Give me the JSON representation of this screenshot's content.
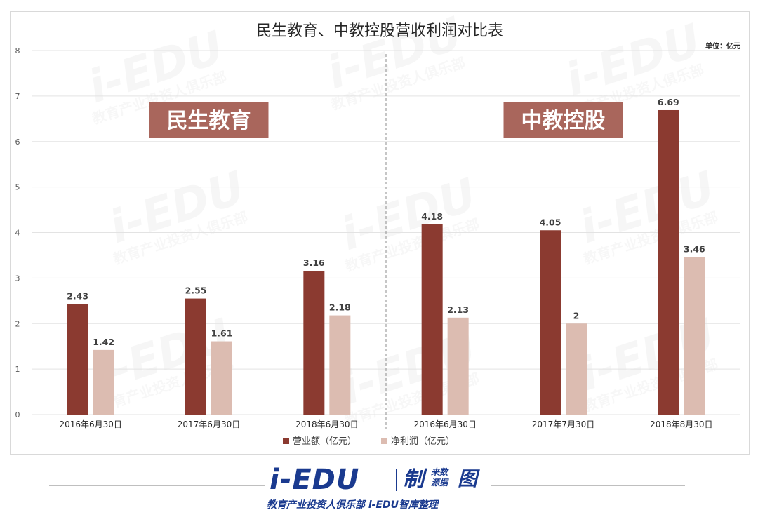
{
  "chart_data": {
    "type": "bar",
    "title": "民生教育、中教控股营收利润对比表",
    "unit_label": "单位：亿元",
    "ylim": [
      0,
      8
    ],
    "yticks": [
      0,
      1,
      2,
      3,
      4,
      5,
      6,
      7,
      8
    ],
    "grid": true,
    "legend_position": "bottom",
    "categories": [
      "2016年6月30日",
      "2017年6月30日",
      "2018年6月30日",
      "2016年6月30日",
      "2017年7月30日",
      "2018年8月30日"
    ],
    "series": [
      {
        "name": "营业额（亿元）",
        "color": "#8b3a30",
        "values": [
          2.43,
          2.55,
          3.16,
          4.18,
          4.05,
          6.69
        ],
        "labels": [
          "2.43",
          "2.55",
          "3.16",
          "4.18",
          "4.05",
          "6.69"
        ]
      },
      {
        "name": "净利润（亿元）",
        "color": "#dcbcb1",
        "values": [
          1.42,
          1.61,
          2.18,
          2.13,
          2.0,
          3.46
        ],
        "labels": [
          "1.42",
          "1.61",
          "2.18",
          "2.13",
          "2",
          "3.46"
        ]
      }
    ],
    "groups": [
      {
        "label": "民生教育",
        "category_count": 3
      },
      {
        "label": "中教控股",
        "category_count": 3
      }
    ],
    "banner_color": "#a9665c",
    "divider": "dashed"
  },
  "footer": {
    "logo_main": "i-EDU",
    "logo_zhi": "制",
    "logo_source_line1": "来数",
    "logo_source_line2": "源据",
    "logo_tu": "图",
    "tagline": "教育产业投资人俱乐部  i-EDU智库整理",
    "brand_color": "#1a3a8f"
  },
  "watermark": {
    "text": "i-EDU",
    "subtext": "教育产业投资人俱乐部"
  }
}
